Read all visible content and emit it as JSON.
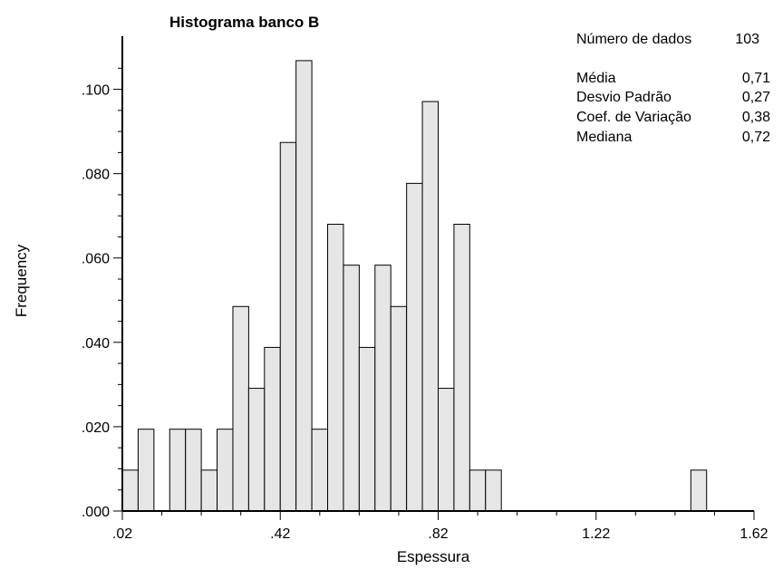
{
  "chart_data": {
    "type": "bar",
    "title": "Histograma banco B",
    "xlabel": "Espessura",
    "ylabel": "Frequency",
    "xlim": [
      0.02,
      1.62
    ],
    "ylim": [
      0,
      0.107
    ],
    "x_tick_labels": [
      ".02",
      ".42",
      ".82",
      "1.22",
      "1.62"
    ],
    "x_ticks": [
      0.02,
      0.42,
      0.82,
      1.22,
      1.62
    ],
    "y_tick_labels": [
      ".000",
      ".020",
      ".040",
      ".060",
      ".080",
      ".100"
    ],
    "y_ticks": [
      0,
      0.02,
      0.04,
      0.06,
      0.08,
      0.1
    ],
    "bin_width": 0.04,
    "bin_start": 0.02,
    "values": [
      0.0097,
      0.0194,
      0,
      0.0194,
      0.0194,
      0.0097,
      0.0194,
      0.0485,
      0.0291,
      0.0388,
      0.0874,
      0.1068,
      0.0194,
      0.068,
      0.0583,
      0.0388,
      0.0583,
      0.0485,
      0.0777,
      0.0971,
      0.0291,
      0.068,
      0.0097,
      0.0097,
      0,
      0,
      0,
      0,
      0,
      0,
      0,
      0,
      0,
      0,
      0,
      0,
      0.0097,
      0
    ],
    "grid": false,
    "stats": [
      {
        "label": "Número de dados",
        "value": "103"
      },
      {
        "label": "Média",
        "value": "0,71"
      },
      {
        "label": "Desvio Padrão",
        "value": "0,27"
      },
      {
        "label": "Coef. de Variação",
        "value": "0,38"
      },
      {
        "label": "Mediana",
        "value": "0,72"
      }
    ]
  }
}
